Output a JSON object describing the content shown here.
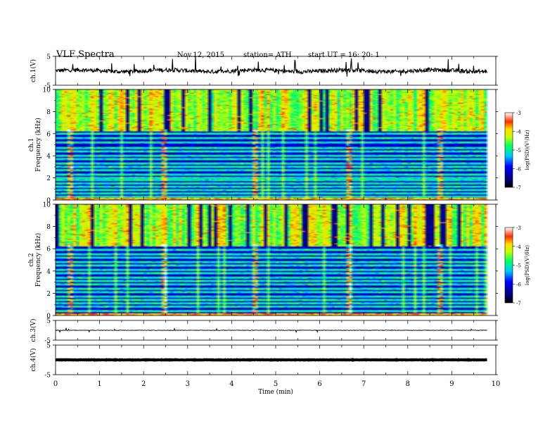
{
  "header": {
    "title": "VLF  Spectra",
    "date": "Nov.12, 2015",
    "station": "station= ATH",
    "start": "start  UT  =    16: 20: 1"
  },
  "chart_data": [
    {
      "type": "line",
      "ylabel": "ch.1(V)",
      "yticks": [
        "5",
        "-5"
      ],
      "ylim": [
        -5,
        5
      ],
      "xlim": [
        0,
        10
      ],
      "x_extent_min": 9.8,
      "mean": 0.0,
      "noise": "high, with frequent spikes"
    },
    {
      "type": "heatmap",
      "label": "ch.1",
      "ylabel": "Frequency  (kHz)",
      "yticks": [
        "0",
        "2",
        "4",
        "6",
        "8",
        "10"
      ],
      "ylim": [
        0,
        10
      ],
      "xlim": [
        0,
        10
      ],
      "colorbar": {
        "label": "log(PSD)(V²/Hz)",
        "ticks": [
          "-3",
          "-4",
          "-5",
          "-6",
          "-7"
        ],
        "range": [
          -7,
          -3
        ]
      },
      "bright_columns_min": [
        0.35,
        2.45,
        4.55,
        6.65,
        8.75
      ],
      "bands_khz": [
        0.3,
        0.6,
        0.9,
        1.2,
        1.5,
        1.8,
        2.0,
        2.3,
        2.7,
        3.0,
        3.3,
        3.7,
        4.0,
        4.4,
        4.7,
        5.2,
        5.6,
        6.0,
        6.3
      ]
    },
    {
      "type": "heatmap",
      "label": "ch.2",
      "ylabel": "Frequency  (kHz)",
      "yticks": [
        "0",
        "2",
        "4",
        "6",
        "8",
        "10"
      ],
      "ylim": [
        0,
        10
      ],
      "xlim": [
        0,
        10
      ],
      "colorbar": {
        "label": "log(PSD)(V²/Hz)",
        "ticks": [
          "-3",
          "-4",
          "-5",
          "-6",
          "-7"
        ],
        "range": [
          -7,
          -3
        ]
      },
      "bright_columns_min": [
        0.35,
        2.45,
        4.55,
        6.65,
        8.75
      ],
      "bands_khz": [
        0.4,
        0.8,
        1.1,
        1.4,
        1.7,
        2.1,
        2.4,
        2.8,
        3.1,
        3.4,
        3.8,
        4.1,
        4.5,
        4.8,
        5.2,
        5.5,
        5.9,
        6.3,
        6.6
      ]
    },
    {
      "type": "line",
      "ylabel": "ch.3(V)",
      "yticks": [
        "5",
        "-5"
      ],
      "ylim": [
        -5,
        5
      ],
      "xlim": [
        0,
        10
      ],
      "x_extent_min": 9.8,
      "mean": 0.0,
      "noise": "low"
    },
    {
      "type": "line",
      "ylabel": "ch.4(V)",
      "yticks": [
        "5",
        "-5"
      ],
      "ylim": [
        -5,
        5
      ],
      "xlim": [
        0,
        10
      ],
      "x_extent_min": 9.8,
      "mean": 0.0,
      "noise": "thick flat trace"
    }
  ],
  "xaxis": {
    "label": "Time  (min)",
    "ticks": [
      "0",
      "1",
      "2",
      "3",
      "4",
      "5",
      "6",
      "7",
      "8",
      "9",
      "10"
    ],
    "range": [
      0,
      10
    ]
  }
}
